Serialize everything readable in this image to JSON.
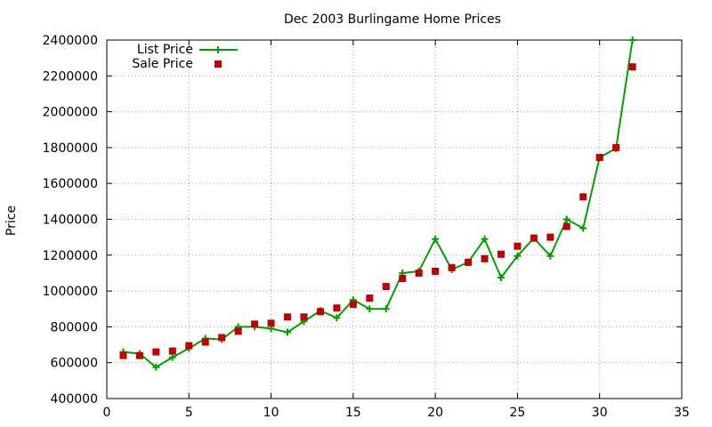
{
  "chart_data": {
    "type": "line",
    "title": "Dec 2003 Burlingame Home Prices",
    "xlabel": "",
    "ylabel": "Price",
    "xlim": [
      0,
      35
    ],
    "ylim": [
      400000,
      2400000
    ],
    "xticks": [
      0,
      5,
      10,
      15,
      20,
      25,
      30,
      35
    ],
    "yticks": [
      400000,
      600000,
      800000,
      1000000,
      1200000,
      1400000,
      1600000,
      1800000,
      2000000,
      2200000,
      2400000
    ],
    "grid": true,
    "legend_position": "top-left",
    "series": [
      {
        "name": "List Price",
        "style": "line+plus-markers",
        "color": "#00a000",
        "x": [
          1,
          2,
          3,
          4,
          5,
          6,
          7,
          8,
          9,
          10,
          11,
          12,
          13,
          14,
          15,
          16,
          17,
          18,
          19,
          20,
          21,
          22,
          23,
          24,
          25,
          26,
          27,
          28,
          29,
          30,
          31,
          32
        ],
        "values": [
          660000,
          650000,
          575000,
          630000,
          680000,
          735000,
          730000,
          800000,
          800000,
          790000,
          770000,
          830000,
          890000,
          850000,
          950000,
          900000,
          900000,
          1100000,
          1110000,
          1290000,
          1120000,
          1160000,
          1290000,
          1075000,
          1195000,
          1295000,
          1195000,
          1400000,
          1350000,
          1745000,
          1795000,
          2400000
        ]
      },
      {
        "name": "Sale Price",
        "style": "square-markers",
        "color": "#c00000",
        "x": [
          1,
          2,
          3,
          4,
          5,
          6,
          7,
          8,
          9,
          10,
          11,
          12,
          13,
          14,
          15,
          16,
          17,
          18,
          19,
          20,
          21,
          22,
          23,
          24,
          25,
          26,
          27,
          28,
          29,
          30,
          31,
          32
        ],
        "values": [
          640000,
          640000,
          660000,
          665000,
          695000,
          715000,
          740000,
          775000,
          815000,
          820000,
          855000,
          855000,
          885000,
          905000,
          925000,
          960000,
          1025000,
          1070000,
          1100000,
          1110000,
          1130000,
          1160000,
          1180000,
          1205000,
          1250000,
          1295000,
          1300000,
          1360000,
          1525000,
          1745000,
          1800000,
          2250000
        ]
      }
    ]
  }
}
